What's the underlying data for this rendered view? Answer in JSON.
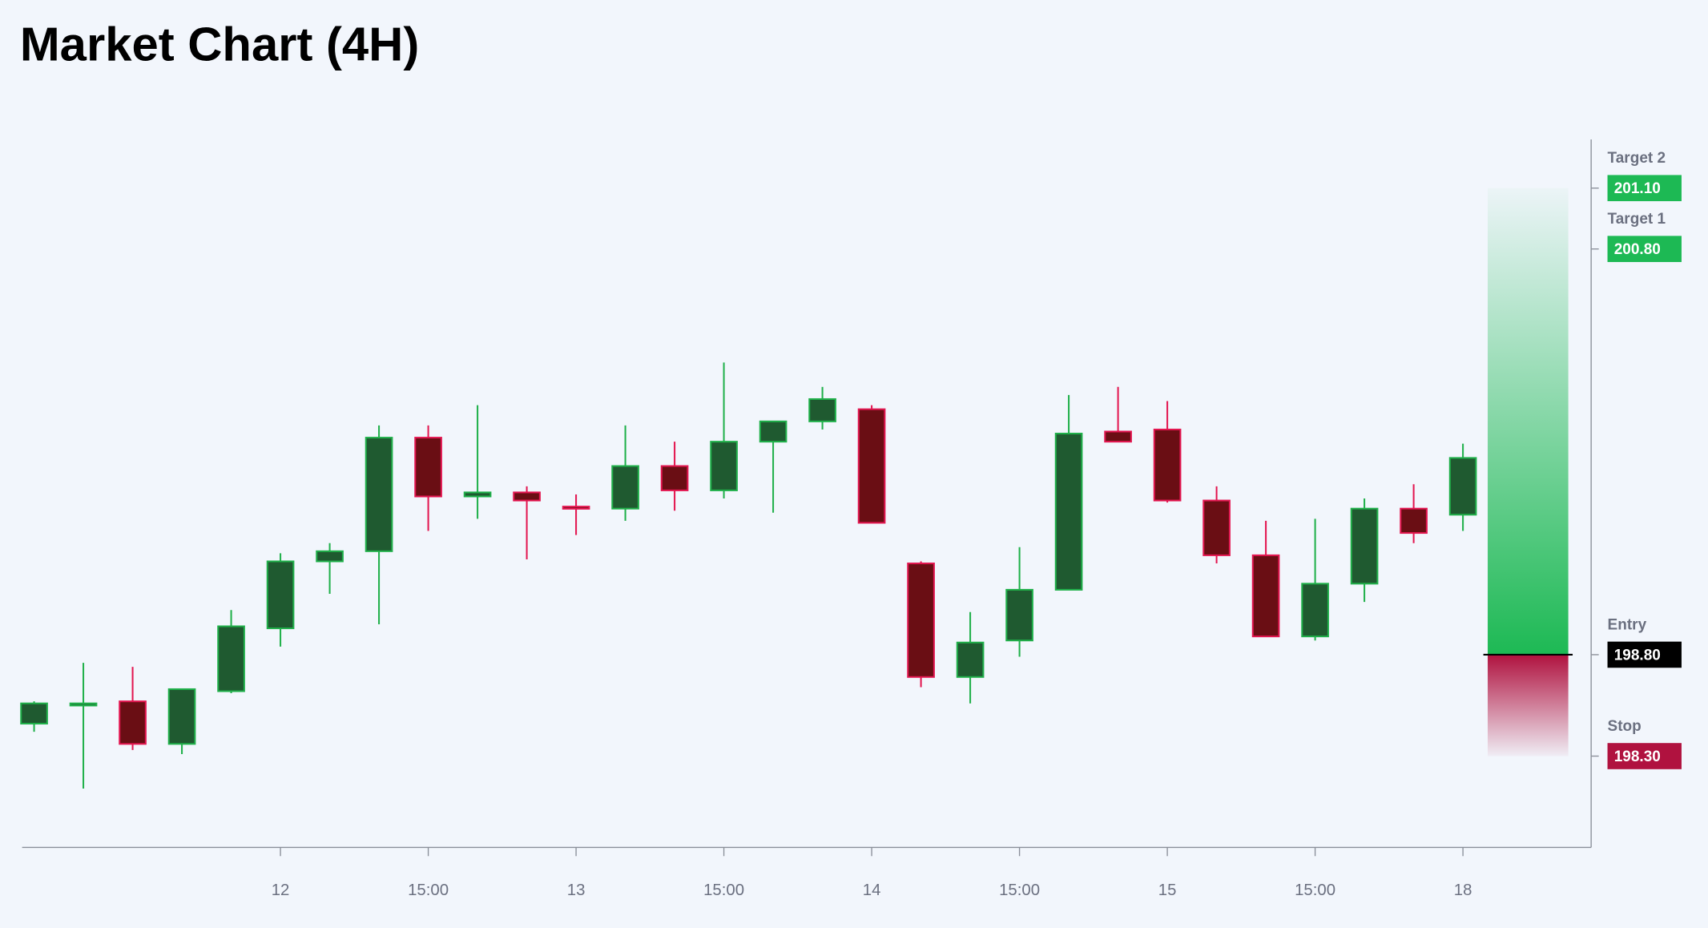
{
  "chart_data": {
    "type": "candlestick",
    "title": "Market Chart (4H)",
    "categories": [
      null,
      null,
      null,
      null,
      null,
      "12",
      null,
      null,
      "15:00",
      null,
      null,
      "13",
      null,
      null,
      "15:00",
      null,
      null,
      "14",
      null,
      null,
      "15:00",
      null,
      null,
      "15",
      null,
      null,
      "15:00",
      null,
      null,
      "18"
    ],
    "open": [
      198.46,
      198.55,
      198.57,
      198.36,
      198.62,
      198.93,
      199.26,
      199.31,
      199.87,
      199.58,
      199.6,
      199.53,
      199.52,
      199.73,
      199.61,
      199.85,
      199.95,
      200.01,
      199.25,
      198.69,
      198.87,
      199.12,
      199.9,
      199.91,
      199.56,
      199.29,
      198.89,
      199.15,
      199.52,
      199.49
    ],
    "high": [
      198.57,
      198.76,
      198.74,
      198.63,
      199.02,
      199.3,
      199.35,
      199.93,
      199.93,
      200.03,
      199.63,
      199.59,
      199.93,
      199.85,
      200.24,
      199.95,
      200.12,
      200.03,
      199.26,
      199.01,
      199.33,
      200.08,
      200.12,
      200.05,
      199.63,
      199.46,
      199.47,
      199.57,
      199.64,
      199.84
    ],
    "low": [
      198.42,
      198.14,
      198.33,
      198.31,
      198.61,
      198.84,
      199.1,
      198.95,
      199.41,
      199.47,
      199.27,
      199.39,
      199.46,
      199.51,
      199.57,
      199.5,
      199.91,
      199.45,
      198.64,
      198.56,
      198.79,
      199.12,
      199.85,
      199.55,
      199.25,
      198.89,
      198.87,
      199.06,
      199.35,
      199.41
    ],
    "close": [
      198.56,
      198.56,
      198.36,
      198.63,
      198.94,
      199.26,
      199.31,
      199.87,
      199.58,
      199.6,
      199.56,
      199.52,
      199.73,
      199.61,
      199.85,
      199.95,
      200.06,
      199.45,
      198.69,
      198.86,
      199.12,
      199.89,
      199.85,
      199.56,
      199.29,
      198.89,
      199.15,
      199.52,
      199.4,
      199.77
    ],
    "up_color": "#1f5a30",
    "up_border": "#20b04a",
    "down_color": "#6a0e14",
    "down_border": "#e31650",
    "ylim": [
      197.85,
      201.34
    ],
    "levels": [
      {
        "name": "Target 2",
        "value": 201.1,
        "value_label": "201.10",
        "color": "#1db954"
      },
      {
        "name": "Target 1",
        "value": 200.8,
        "value_label": "200.80",
        "color": "#1db954"
      },
      {
        "name": "Entry",
        "value": 198.8,
        "value_label": "198.80",
        "color": "#000000"
      },
      {
        "name": "Stop",
        "value": 198.3,
        "value_label": "198.30",
        "color": "#b0123f"
      }
    ]
  }
}
